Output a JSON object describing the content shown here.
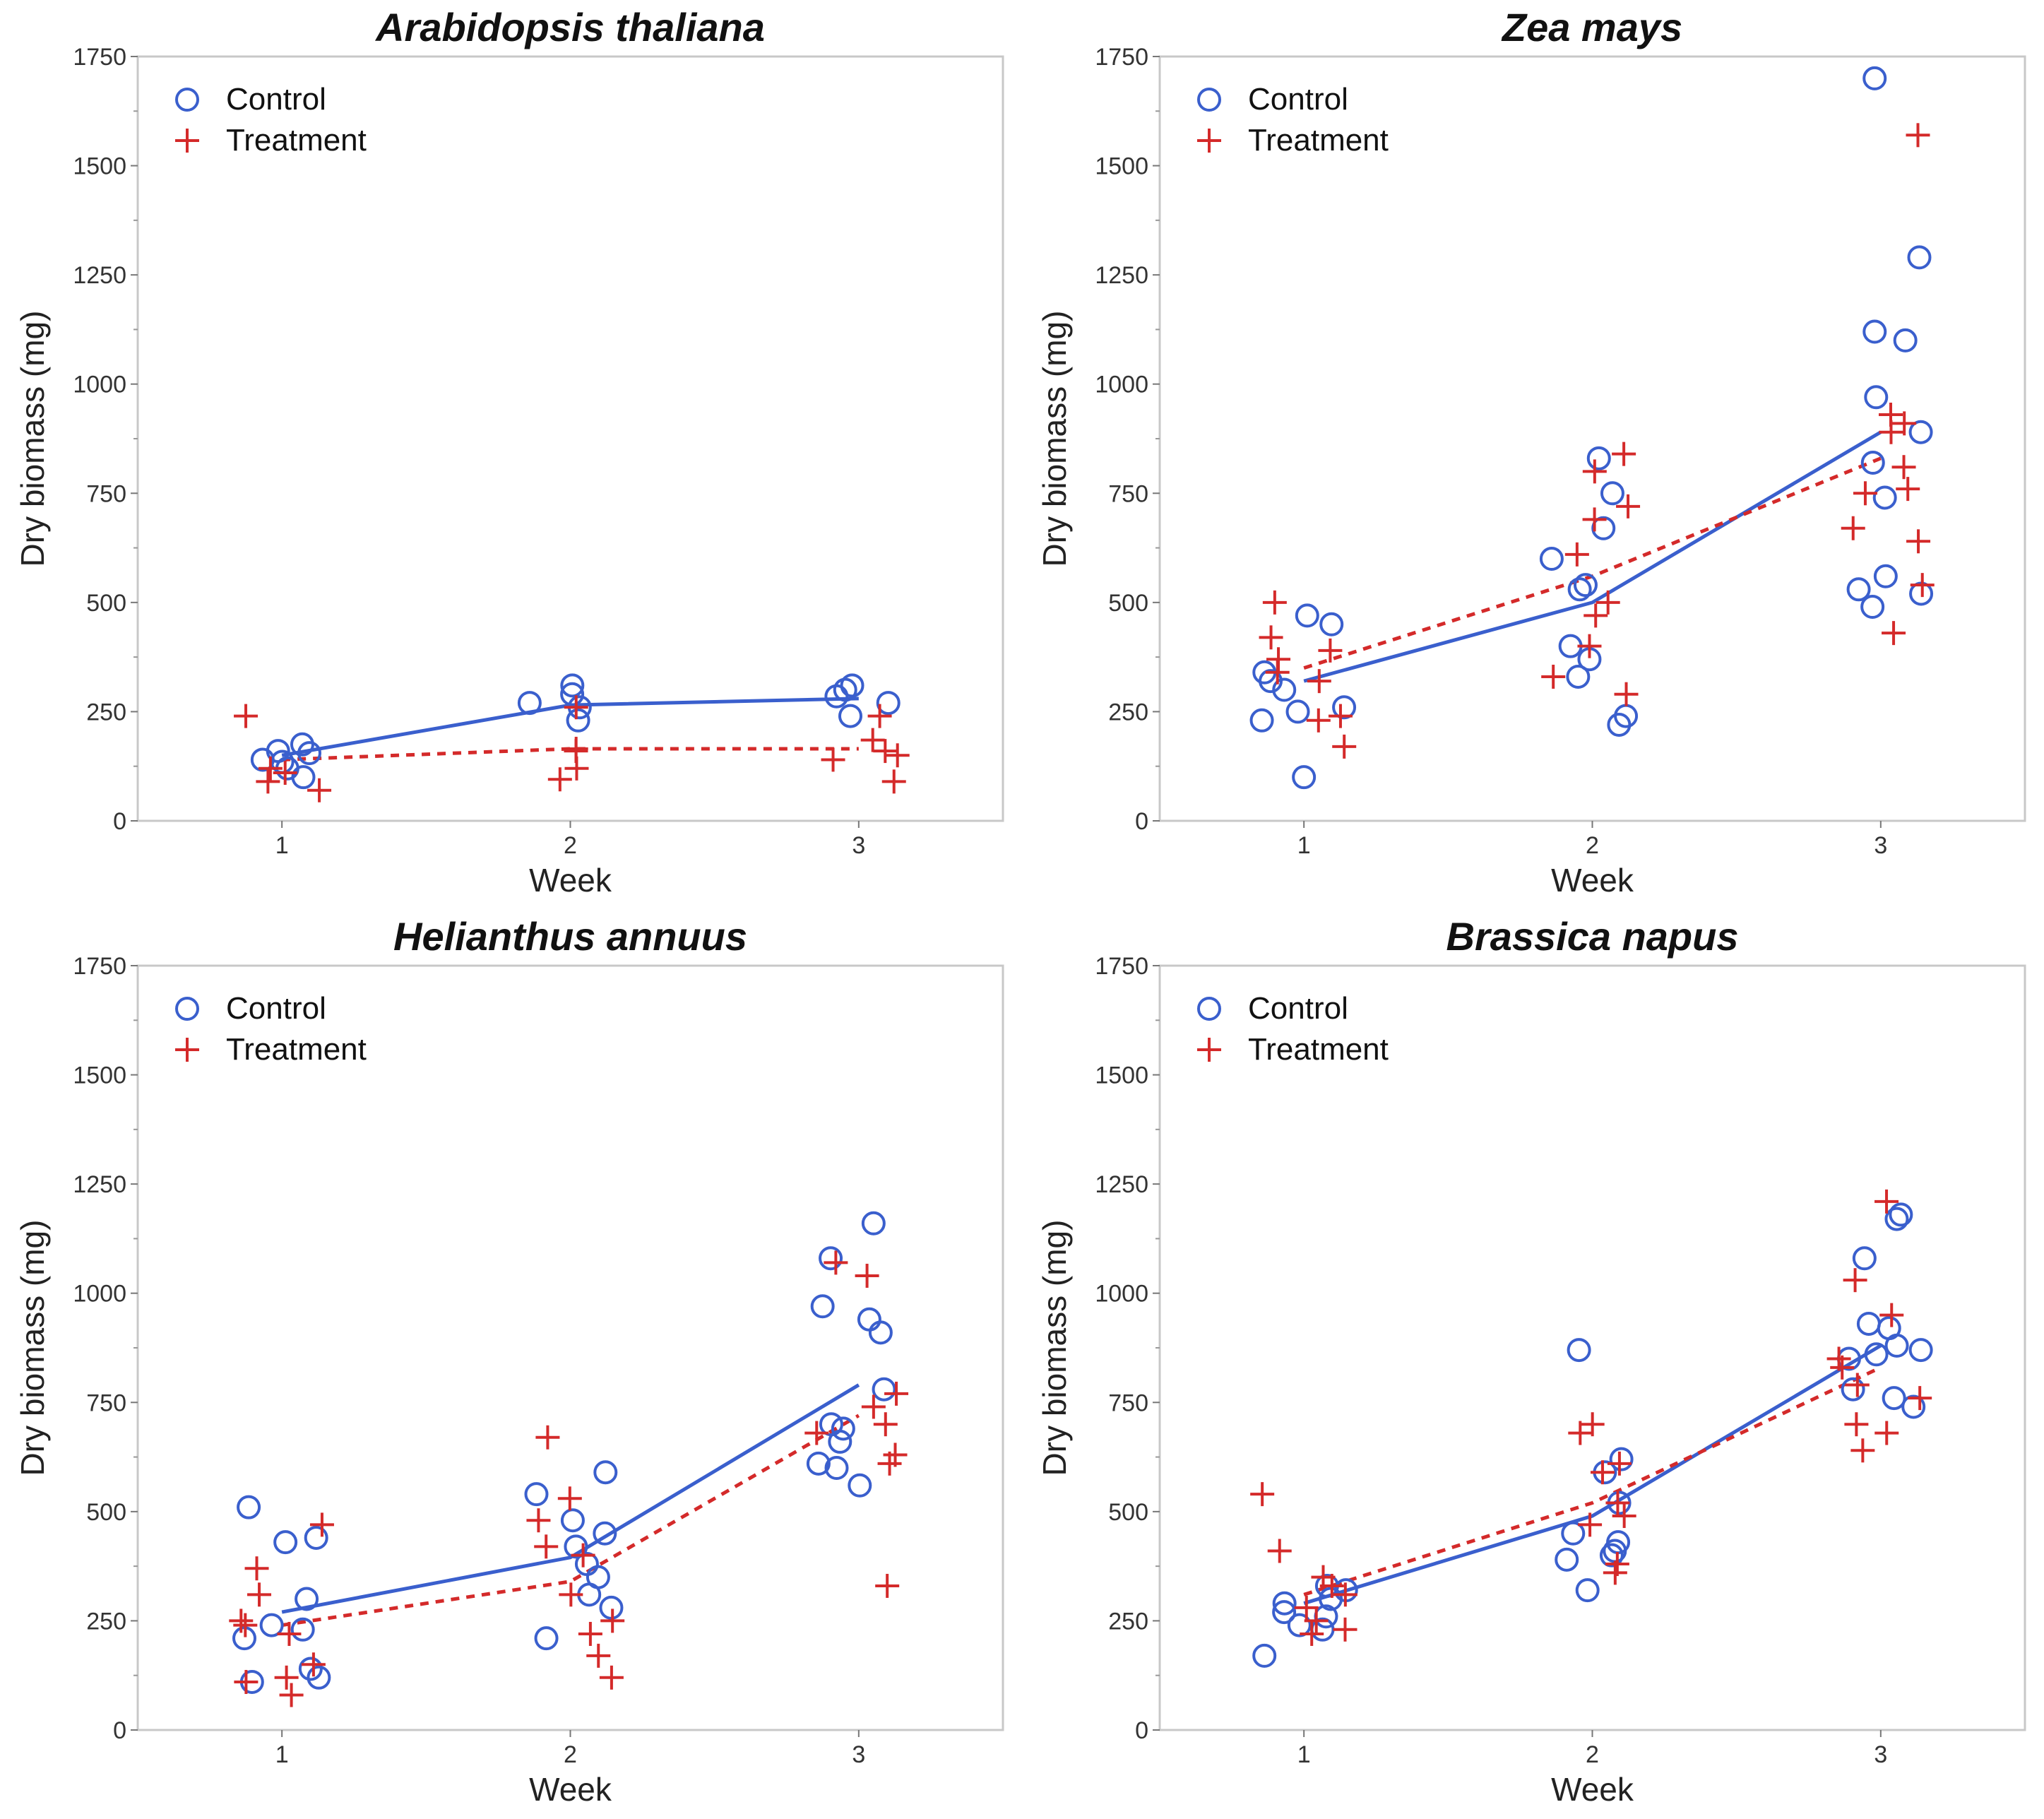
{
  "chart_data": [
    {
      "type": "scatter",
      "title": "Arabidopsis thaliana",
      "xlabel": "Week",
      "ylabel": "Dry biomass (mg)",
      "categories": [
        "1",
        "2",
        "3"
      ],
      "yticks": [
        "0",
        "250",
        "500",
        "750",
        "1000",
        "1250",
        "1500",
        "1750"
      ],
      "ylim": [
        0,
        1750
      ],
      "legend_position": "top-left",
      "colors": {
        "Control": "#3a5fcd",
        "Treatment": "#d42a2a"
      },
      "series": [
        {
          "name": "Control",
          "marker": "circle",
          "line": "solid",
          "means": [
            150,
            265,
            280
          ],
          "points": [
            [
              1,
              175
            ],
            [
              1,
              120
            ],
            [
              1,
              160
            ],
            [
              1,
              140
            ],
            [
              1,
              155
            ],
            [
              1,
              100
            ],
            [
              1,
              135
            ],
            [
              2,
              310
            ],
            [
              2,
              290
            ],
            [
              2,
              270
            ],
            [
              2,
              230
            ],
            [
              2,
              260
            ],
            [
              3,
              240
            ],
            [
              3,
              270
            ],
            [
              3,
              300
            ],
            [
              3,
              310
            ],
            [
              3,
              285
            ]
          ]
        },
        {
          "name": "Treatment",
          "marker": "plus",
          "line": "dashed",
          "means": [
            140,
            165,
            165
          ],
          "points": [
            [
              1,
              240
            ],
            [
              1,
              120
            ],
            [
              1,
              90
            ],
            [
              1,
              70
            ],
            [
              1,
              110
            ],
            [
              2,
              260
            ],
            [
              2,
              160
            ],
            [
              2,
              120
            ],
            [
              2,
              165
            ],
            [
              2,
              95
            ],
            [
              3,
              90
            ],
            [
              3,
              160
            ],
            [
              3,
              140
            ],
            [
              3,
              240
            ],
            [
              3,
              185
            ],
            [
              3,
              150
            ]
          ]
        }
      ]
    },
    {
      "type": "scatter",
      "title": "Zea mays",
      "xlabel": "Week",
      "ylabel": "Dry biomass (mg)",
      "categories": [
        "1",
        "2",
        "3"
      ],
      "yticks": [
        "0",
        "250",
        "500",
        "750",
        "1000",
        "1250",
        "1500",
        "1750"
      ],
      "ylim": [
        0,
        1750
      ],
      "legend_position": "top-left",
      "colors": {
        "Control": "#3a5fcd",
        "Treatment": "#d42a2a"
      },
      "series": [
        {
          "name": "Control",
          "marker": "circle",
          "line": "solid",
          "means": [
            320,
            500,
            890
          ],
          "points": [
            [
              1,
              450
            ],
            [
              1,
              470
            ],
            [
              1,
              340
            ],
            [
              1,
              320
            ],
            [
              1,
              300
            ],
            [
              1,
              260
            ],
            [
              1,
              250
            ],
            [
              1,
              230
            ],
            [
              1,
              100
            ],
            [
              2,
              830
            ],
            [
              2,
              750
            ],
            [
              2,
              670
            ],
            [
              2,
              600
            ],
            [
              2,
              540
            ],
            [
              2,
              530
            ],
            [
              2,
              400
            ],
            [
              2,
              370
            ],
            [
              2,
              330
            ],
            [
              2,
              240
            ],
            [
              2,
              220
            ],
            [
              3,
              1700
            ],
            [
              3,
              1290
            ],
            [
              3,
              1120
            ],
            [
              3,
              1100
            ],
            [
              3,
              970
            ],
            [
              3,
              890
            ],
            [
              3,
              820
            ],
            [
              3,
              740
            ],
            [
              3,
              560
            ],
            [
              3,
              530
            ],
            [
              3,
              490
            ],
            [
              3,
              520
            ]
          ]
        },
        {
          "name": "Treatment",
          "marker": "plus",
          "line": "dashed",
          "means": [
            350,
            560,
            830
          ],
          "points": [
            [
              1,
              500
            ],
            [
              1,
              420
            ],
            [
              1,
              390
            ],
            [
              1,
              370
            ],
            [
              1,
              340
            ],
            [
              1,
              320
            ],
            [
              1,
              240
            ],
            [
              1,
              230
            ],
            [
              1,
              170
            ],
            [
              2,
              840
            ],
            [
              2,
              800
            ],
            [
              2,
              720
            ],
            [
              2,
              690
            ],
            [
              2,
              610
            ],
            [
              2,
              500
            ],
            [
              2,
              470
            ],
            [
              2,
              400
            ],
            [
              2,
              330
            ],
            [
              2,
              290
            ],
            [
              3,
              1570
            ],
            [
              3,
              930
            ],
            [
              3,
              910
            ],
            [
              3,
              890
            ],
            [
              3,
              810
            ],
            [
              3,
              760
            ],
            [
              3,
              750
            ],
            [
              3,
              670
            ],
            [
              3,
              640
            ],
            [
              3,
              540
            ],
            [
              3,
              430
            ]
          ]
        }
      ]
    },
    {
      "type": "scatter",
      "title": "Helianthus annuus",
      "xlabel": "Week",
      "ylabel": "Dry biomass (mg)",
      "categories": [
        "1",
        "2",
        "3"
      ],
      "yticks": [
        "0",
        "250",
        "500",
        "750",
        "1000",
        "1250",
        "1500",
        "1750"
      ],
      "ylim": [
        0,
        1750
      ],
      "legend_position": "top-left",
      "colors": {
        "Control": "#3a5fcd",
        "Treatment": "#d42a2a"
      },
      "series": [
        {
          "name": "Control",
          "marker": "circle",
          "line": "solid",
          "means": [
            270,
            395,
            790
          ],
          "points": [
            [
              1,
              510
            ],
            [
              1,
              440
            ],
            [
              1,
              430
            ],
            [
              1,
              300
            ],
            [
              1,
              240
            ],
            [
              1,
              230
            ],
            [
              1,
              210
            ],
            [
              1,
              140
            ],
            [
              1,
              120
            ],
            [
              1,
              110
            ],
            [
              2,
              590
            ],
            [
              2,
              540
            ],
            [
              2,
              480
            ],
            [
              2,
              450
            ],
            [
              2,
              420
            ],
            [
              2,
              380
            ],
            [
              2,
              350
            ],
            [
              2,
              310
            ],
            [
              2,
              280
            ],
            [
              2,
              210
            ],
            [
              3,
              1160
            ],
            [
              3,
              1080
            ],
            [
              3,
              970
            ],
            [
              3,
              940
            ],
            [
              3,
              910
            ],
            [
              3,
              780
            ],
            [
              3,
              700
            ],
            [
              3,
              690
            ],
            [
              3,
              660
            ],
            [
              3,
              610
            ],
            [
              3,
              600
            ],
            [
              3,
              560
            ]
          ]
        },
        {
          "name": "Treatment",
          "marker": "plus",
          "line": "dashed",
          "means": [
            240,
            340,
            720
          ],
          "points": [
            [
              1,
              470
            ],
            [
              1,
              370
            ],
            [
              1,
              310
            ],
            [
              1,
              250
            ],
            [
              1,
              240
            ],
            [
              1,
              220
            ],
            [
              1,
              150
            ],
            [
              1,
              120
            ],
            [
              1,
              110
            ],
            [
              1,
              80
            ],
            [
              2,
              670
            ],
            [
              2,
              530
            ],
            [
              2,
              480
            ],
            [
              2,
              420
            ],
            [
              2,
              400
            ],
            [
              2,
              310
            ],
            [
              2,
              250
            ],
            [
              2,
              220
            ],
            [
              2,
              170
            ],
            [
              2,
              120
            ],
            [
              3,
              1070
            ],
            [
              3,
              1040
            ],
            [
              3,
              770
            ],
            [
              3,
              740
            ],
            [
              3,
              700
            ],
            [
              3,
              680
            ],
            [
              3,
              630
            ],
            [
              3,
              610
            ],
            [
              3,
              330
            ]
          ]
        }
      ]
    },
    {
      "type": "scatter",
      "title": "Brassica napus",
      "xlabel": "Week",
      "ylabel": "Dry biomass (mg)",
      "categories": [
        "1",
        "2",
        "3"
      ],
      "yticks": [
        "0",
        "250",
        "500",
        "750",
        "1000",
        "1250",
        "1500",
        "1750"
      ],
      "ylim": [
        0,
        1750
      ],
      "legend_position": "top-left",
      "colors": {
        "Control": "#3a5fcd",
        "Treatment": "#d42a2a"
      },
      "series": [
        {
          "name": "Control",
          "marker": "circle",
          "line": "solid",
          "means": [
            290,
            490,
            880
          ],
          "points": [
            [
              1,
              330
            ],
            [
              1,
              320
            ],
            [
              1,
              300
            ],
            [
              1,
              290
            ],
            [
              1,
              270
            ],
            [
              1,
              260
            ],
            [
              1,
              240
            ],
            [
              1,
              230
            ],
            [
              1,
              170
            ],
            [
              2,
              870
            ],
            [
              2,
              620
            ],
            [
              2,
              590
            ],
            [
              2,
              520
            ],
            [
              2,
              450
            ],
            [
              2,
              430
            ],
            [
              2,
              410
            ],
            [
              2,
              400
            ],
            [
              2,
              390
            ],
            [
              2,
              320
            ],
            [
              3,
              1180
            ],
            [
              3,
              1170
            ],
            [
              3,
              1080
            ],
            [
              3,
              930
            ],
            [
              3,
              920
            ],
            [
              3,
              880
            ],
            [
              3,
              870
            ],
            [
              3,
              860
            ],
            [
              3,
              850
            ],
            [
              3,
              780
            ],
            [
              3,
              760
            ],
            [
              3,
              740
            ]
          ]
        },
        {
          "name": "Treatment",
          "marker": "plus",
          "line": "dashed",
          "means": [
            310,
            520,
            830
          ],
          "points": [
            [
              1,
              540
            ],
            [
              1,
              410
            ],
            [
              1,
              350
            ],
            [
              1,
              330
            ],
            [
              1,
              310
            ],
            [
              1,
              280
            ],
            [
              1,
              250
            ],
            [
              1,
              230
            ],
            [
              1,
              220
            ],
            [
              2,
              700
            ],
            [
              2,
              680
            ],
            [
              2,
              610
            ],
            [
              2,
              590
            ],
            [
              2,
              520
            ],
            [
              2,
              490
            ],
            [
              2,
              470
            ],
            [
              2,
              380
            ],
            [
              2,
              360
            ],
            [
              3,
              1210
            ],
            [
              3,
              1030
            ],
            [
              3,
              950
            ],
            [
              3,
              850
            ],
            [
              3,
              830
            ],
            [
              3,
              790
            ],
            [
              3,
              760
            ],
            [
              3,
              700
            ],
            [
              3,
              680
            ],
            [
              3,
              640
            ]
          ]
        }
      ]
    }
  ]
}
